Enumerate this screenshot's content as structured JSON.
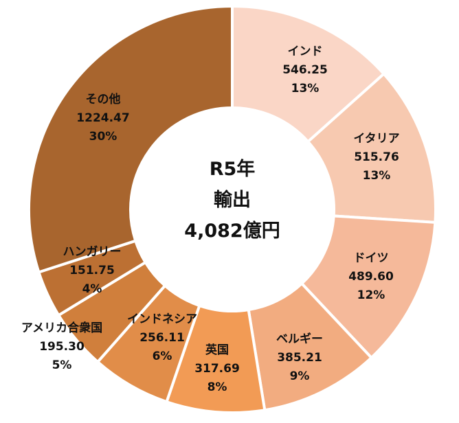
{
  "chart_data": {
    "type": "pie",
    "variant": "donut",
    "center_text": [
      "R5年",
      "輸出",
      "4,082億円"
    ],
    "slices": [
      {
        "label": "インド",
        "value": 546.25,
        "value_text": "546.25",
        "percent_text": "13%",
        "color": "#FAD6C6"
      },
      {
        "label": "イタリア",
        "value": 515.76,
        "value_text": "515.76",
        "percent_text": "13%",
        "color": "#F7C9B0"
      },
      {
        "label": "ドイツ",
        "value": 489.6,
        "value_text": "489.60",
        "percent_text": "12%",
        "color": "#F5B99A"
      },
      {
        "label": "ベルギー",
        "value": 385.21,
        "value_text": "385.21",
        "percent_text": "9%",
        "color": "#F2AC80"
      },
      {
        "label": "英国",
        "value": 317.69,
        "value_text": "317.69",
        "percent_text": "8%",
        "color": "#F29B55"
      },
      {
        "label": "インドネシア",
        "value": 256.11,
        "value_text": "256.11",
        "percent_text": "6%",
        "color": "#E18D49"
      },
      {
        "label": "アメリカ合衆国",
        "value": 195.3,
        "value_text": "195.30",
        "percent_text": "5%",
        "color": "#D07F3C"
      },
      {
        "label": "ハンガリー",
        "value": 151.75,
        "value_text": "151.75",
        "percent_text": "4%",
        "color": "#BC7033"
      },
      {
        "label": "その他",
        "value": 1224.47,
        "value_text": "1224.47",
        "percent_text": "30%",
        "color": "#A8652E"
      }
    ]
  }
}
